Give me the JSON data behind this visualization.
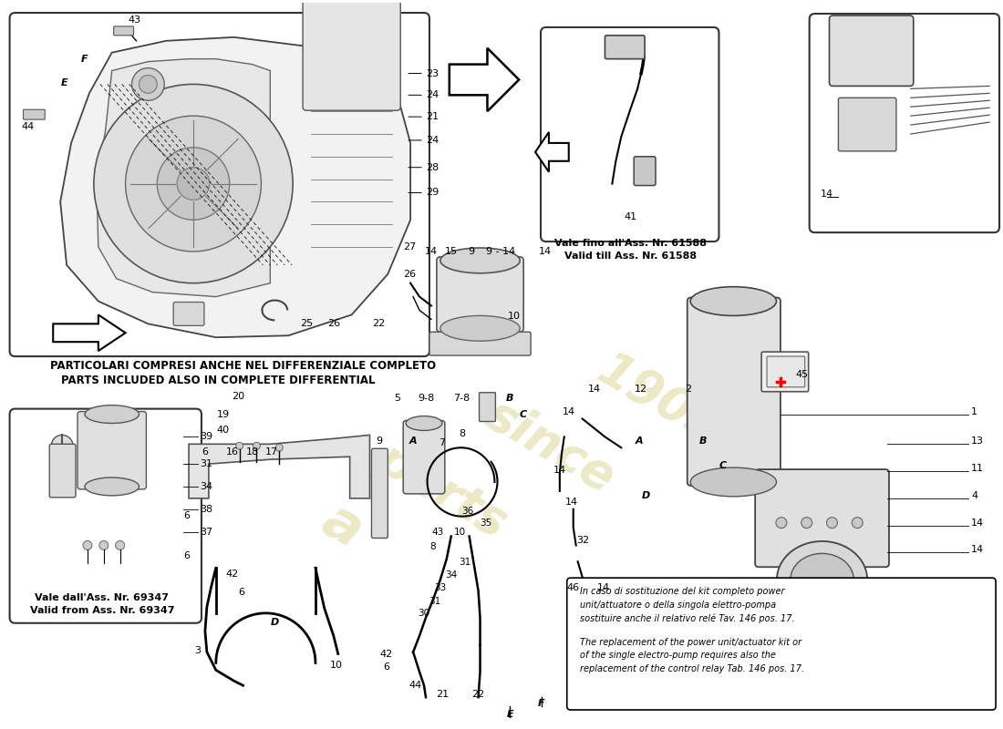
{
  "bg_color": "#ffffff",
  "watermark_lines": [
    "a",
    "parts",
    "since",
    "1905"
  ],
  "watermark_color": "#c8b84a",
  "note_it": "In caso di sostituzione del kit completo power\nunit/attuatore o della singola elettro-pompa\nsostituire anche il relativo relé Tav. 146 pos. 17.",
  "note_en": "The replacement of the power unit/actuator kit or\nof the single electro-pump requires also the\nreplacement of the control relay Tab. 146 pos. 17.",
  "label_diff_it": "PARTICOLARI COMPRESI ANCHE NEL DIFFERENZIALE COMPLETO",
  "label_diff_en": "PARTS INCLUDED ALSO IN COMPLETE DIFFERENTIAL",
  "label_valid_till_1": "Vale fino all'Ass. Nr. 61588",
  "label_valid_till_2": "Valid till Ass. Nr. 61588",
  "label_valid_from_1": "Vale dall'Ass. Nr. 69347",
  "label_valid_from_2": "Valid from Ass. Nr. 69347"
}
